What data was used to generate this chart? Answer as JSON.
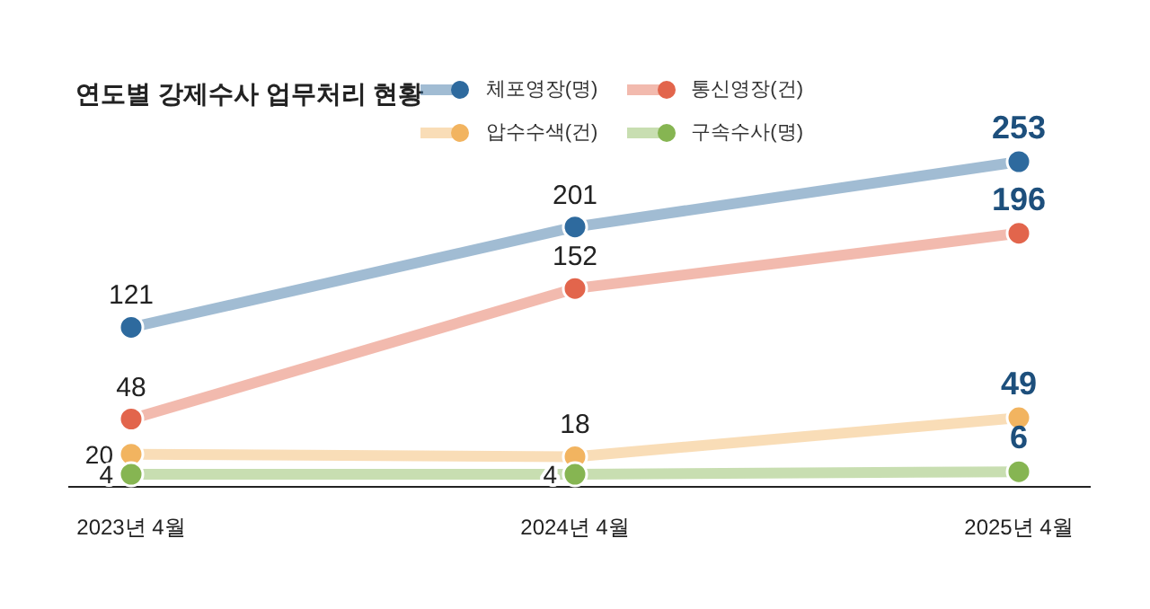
{
  "chart_data": {
    "type": "line",
    "title": "연도별 강제수사 업무처리 현황",
    "categories": [
      "2023년 4월",
      "2024년 4월",
      "2025년 4월"
    ],
    "series": [
      {
        "name": "체포영장(명)",
        "color": "#2e6a9e",
        "values": [
          121,
          201,
          253
        ]
      },
      {
        "name": "통신영장(건)",
        "color": "#e2654c",
        "values": [
          48,
          152,
          196
        ]
      },
      {
        "name": "압수수색(건)",
        "color": "#f2b460",
        "values": [
          20,
          18,
          49
        ]
      },
      {
        "name": "구속수사(명)",
        "color": "#86b552",
        "values": [
          4,
          4,
          6
        ]
      }
    ],
    "data_labels": true,
    "legend": "top right",
    "marker": "circle",
    "line_style": "solid",
    "grid": false
  }
}
